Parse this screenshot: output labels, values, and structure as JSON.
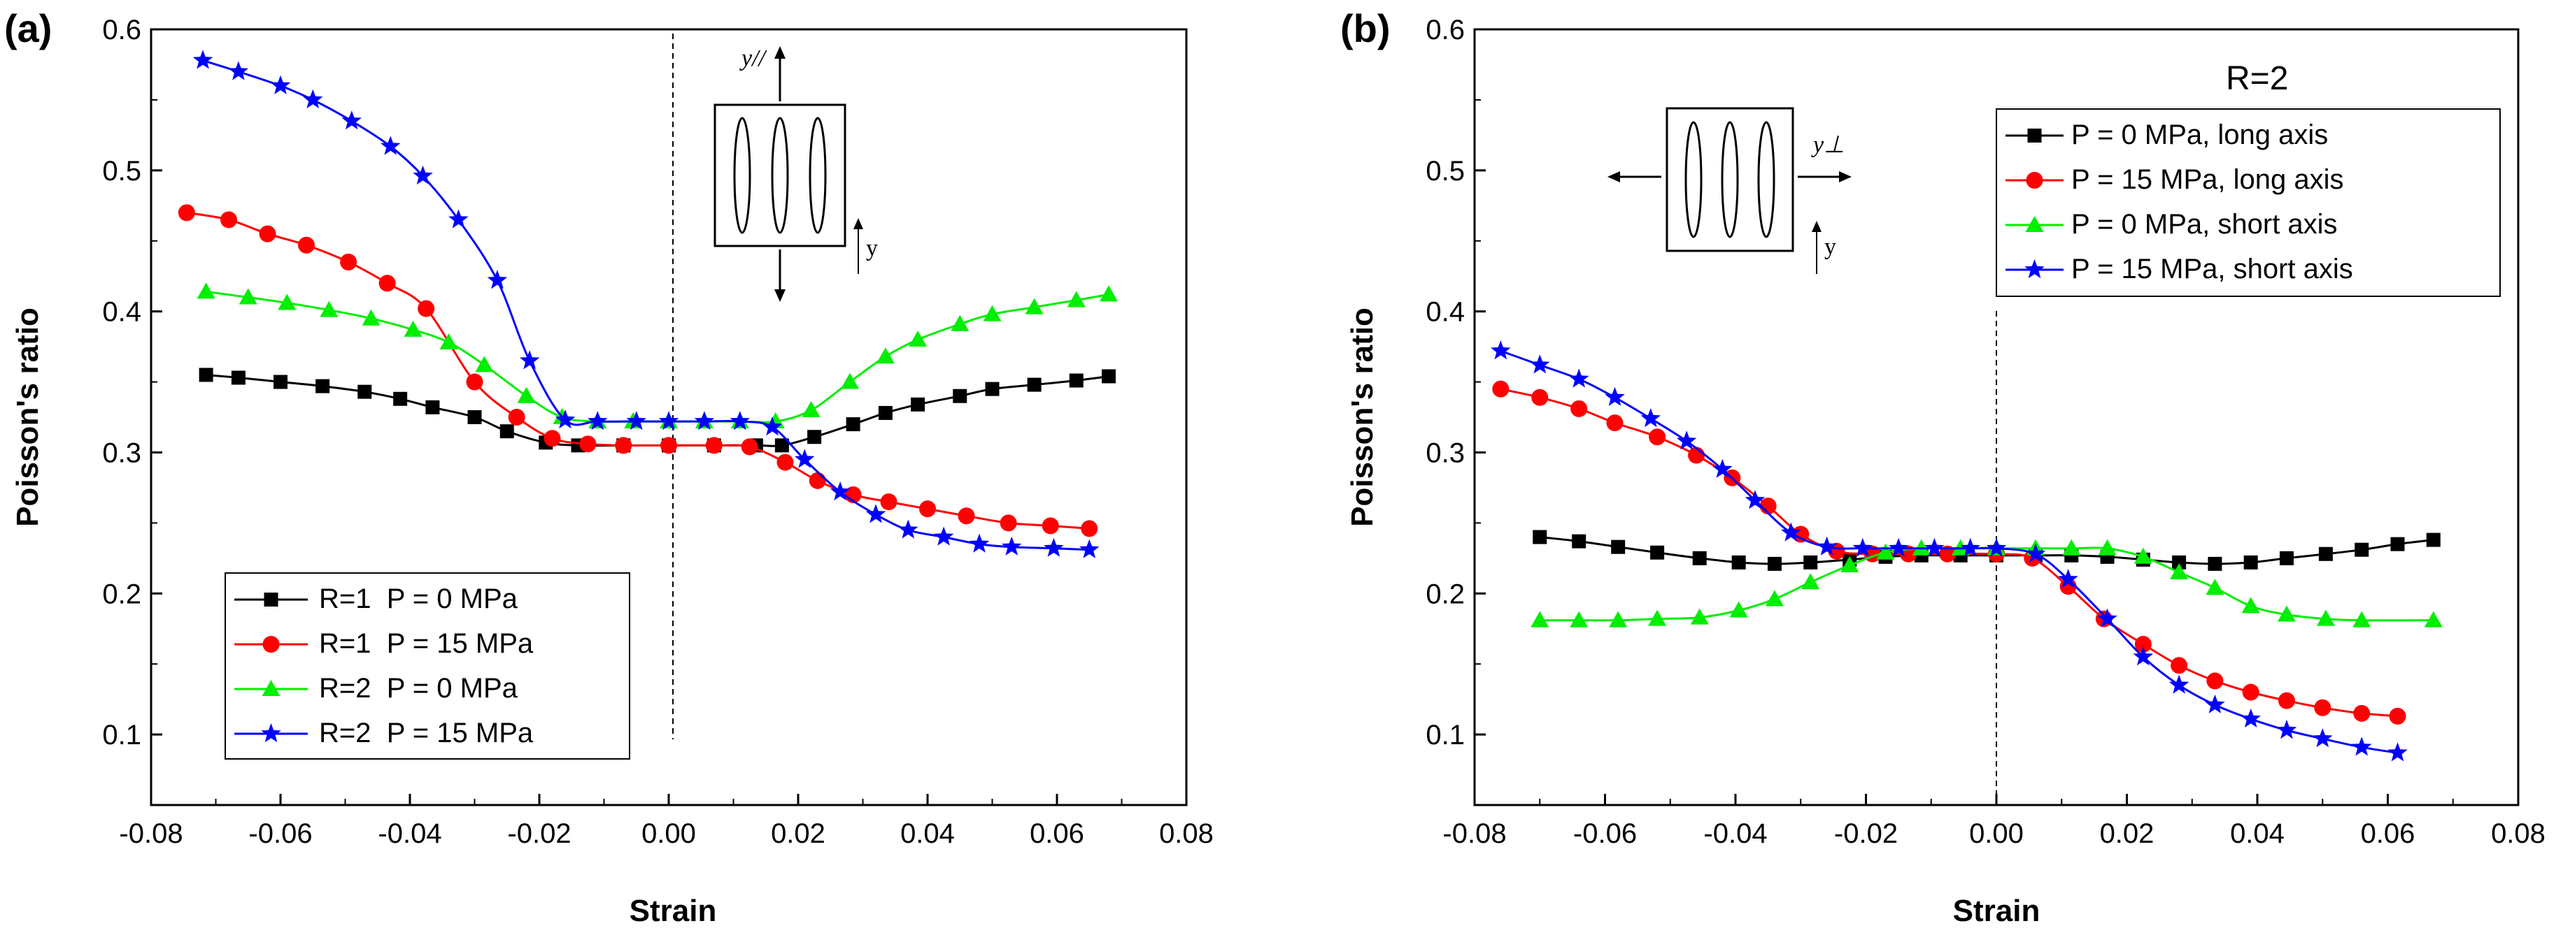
{
  "chart_data": [
    {
      "type": "line",
      "panel_label": "(a)",
      "xlabel": "Strain",
      "ylabel": "Poisson's ratio",
      "xlim": [
        -0.08,
        0.08
      ],
      "ylim": [
        0.05,
        0.6
      ],
      "xticks": [
        "-0.08",
        "-0.06",
        "-0.04",
        "-0.02",
        "0.00",
        "0.02",
        "0.04",
        "0.06",
        "0.08"
      ],
      "yticks": [
        "0.1",
        "0.2",
        "0.3",
        "0.4",
        "0.5",
        "0.6"
      ],
      "inset_labels": {
        "top": "y//",
        "side": "y"
      },
      "legend_position": "bottom-left",
      "series": [
        {
          "name": "R=1  P = 0 MPa",
          "color": "#000000",
          "marker": "square",
          "x": [
            -0.0715,
            -0.0665,
            -0.06,
            -0.0535,
            -0.047,
            -0.0415,
            -0.0365,
            -0.03,
            -0.025,
            -0.019,
            -0.014,
            -0.007,
            0.0,
            0.007,
            0.0135,
            0.0175,
            0.0225,
            0.0285,
            0.0335,
            0.0385,
            0.045,
            0.05,
            0.0565,
            0.063,
            0.068
          ],
          "y": [
            0.355,
            0.353,
            0.35,
            0.347,
            0.343,
            0.338,
            0.332,
            0.325,
            0.315,
            0.307,
            0.305,
            0.305,
            0.305,
            0.305,
            0.305,
            0.305,
            0.311,
            0.32,
            0.328,
            0.334,
            0.34,
            0.345,
            0.348,
            0.351,
            0.354
          ]
        },
        {
          "name": "R=1  P = 15 MPa",
          "color": "#ff0000",
          "marker": "circle",
          "x": [
            -0.0745,
            -0.068,
            -0.062,
            -0.056,
            -0.0495,
            -0.0435,
            -0.0375,
            -0.03,
            -0.0235,
            -0.018,
            -0.0125,
            -0.007,
            0.0,
            0.007,
            0.0125,
            0.018,
            0.023,
            0.0285,
            0.034,
            0.04,
            0.046,
            0.0525,
            0.059,
            0.065
          ],
          "y": [
            0.47,
            0.465,
            0.455,
            0.447,
            0.435,
            0.42,
            0.402,
            0.35,
            0.325,
            0.31,
            0.306,
            0.305,
            0.305,
            0.305,
            0.304,
            0.293,
            0.28,
            0.27,
            0.265,
            0.26,
            0.255,
            0.25,
            0.248,
            0.246
          ]
        },
        {
          "name": "R=2  P = 0 MPa",
          "color": "#00ee00",
          "marker": "triangle",
          "x": [
            -0.0715,
            -0.065,
            -0.059,
            -0.0525,
            -0.046,
            -0.0395,
            -0.034,
            -0.0285,
            -0.022,
            -0.0165,
            -0.011,
            -0.0055,
            0.0,
            0.0055,
            0.011,
            0.0165,
            0.022,
            0.028,
            0.0335,
            0.0385,
            0.045,
            0.05,
            0.0565,
            0.063,
            0.068
          ],
          "y": [
            0.414,
            0.41,
            0.406,
            0.401,
            0.395,
            0.387,
            0.378,
            0.362,
            0.34,
            0.325,
            0.322,
            0.322,
            0.322,
            0.322,
            0.322,
            0.322,
            0.33,
            0.35,
            0.368,
            0.38,
            0.391,
            0.398,
            0.403,
            0.408,
            0.412
          ]
        },
        {
          "name": "R=2  P = 15 MPa",
          "color": "#0000ff",
          "marker": "star",
          "x": [
            -0.072,
            -0.0665,
            -0.06,
            -0.055,
            -0.049,
            -0.043,
            -0.038,
            -0.0325,
            -0.0265,
            -0.0215,
            -0.016,
            -0.011,
            -0.005,
            0.0,
            0.0055,
            0.011,
            0.016,
            0.021,
            0.0265,
            0.032,
            0.037,
            0.0425,
            0.048,
            0.053,
            0.0595,
            0.065
          ],
          "y": [
            0.578,
            0.57,
            0.56,
            0.55,
            0.535,
            0.517,
            0.496,
            0.465,
            0.422,
            0.365,
            0.323,
            0.322,
            0.322,
            0.322,
            0.322,
            0.322,
            0.318,
            0.295,
            0.272,
            0.256,
            0.245,
            0.24,
            0.235,
            0.233,
            0.232,
            0.231
          ]
        }
      ]
    },
    {
      "type": "line",
      "panel_label": "(b)",
      "xlabel": "Strain",
      "ylabel": "Poisson's ratio",
      "xlim": [
        -0.08,
        0.08
      ],
      "ylim": [
        0.05,
        0.6
      ],
      "xticks": [
        "-0.08",
        "-0.06",
        "-0.04",
        "-0.02",
        "0.00",
        "0.02",
        "0.04",
        "0.06",
        "0.08"
      ],
      "yticks": [
        "0.1",
        "0.2",
        "0.3",
        "0.4",
        "0.5",
        "0.6"
      ],
      "inset_labels": {
        "top": "y⊥",
        "side": "y"
      },
      "legend_title": "R=2",
      "legend_position": "top-right",
      "series": [
        {
          "name": "P = 0 MPa, long axis",
          "color": "#000000",
          "marker": "square",
          "x": [
            -0.07,
            -0.064,
            -0.058,
            -0.052,
            -0.0455,
            -0.0395,
            -0.034,
            -0.0285,
            -0.0225,
            -0.017,
            -0.0115,
            -0.0055,
            0.0,
            0.006,
            0.0115,
            0.017,
            0.0225,
            0.028,
            0.0335,
            0.039,
            0.0445,
            0.0505,
            0.056,
            0.0615,
            0.067
          ],
          "y": [
            0.24,
            0.237,
            0.233,
            0.229,
            0.225,
            0.222,
            0.221,
            0.222,
            0.224,
            0.226,
            0.227,
            0.227,
            0.227,
            0.227,
            0.227,
            0.226,
            0.224,
            0.222,
            0.221,
            0.222,
            0.225,
            0.228,
            0.231,
            0.235,
            0.238
          ]
        },
        {
          "name": "P = 15 MPa, long axis",
          "color": "#ff0000",
          "marker": "circle",
          "x": [
            -0.076,
            -0.07,
            -0.064,
            -0.0585,
            -0.052,
            -0.046,
            -0.0405,
            -0.035,
            -0.03,
            -0.0245,
            -0.019,
            -0.0135,
            -0.0075,
            0.0,
            0.0055,
            0.011,
            0.0165,
            0.0225,
            0.028,
            0.0335,
            0.039,
            0.0445,
            0.05,
            0.056,
            0.0615
          ],
          "y": [
            0.345,
            0.339,
            0.331,
            0.321,
            0.311,
            0.298,
            0.282,
            0.262,
            0.242,
            0.23,
            0.228,
            0.228,
            0.228,
            0.228,
            0.225,
            0.205,
            0.182,
            0.164,
            0.149,
            0.138,
            0.13,
            0.124,
            0.119,
            0.115,
            0.113
          ]
        },
        {
          "name": "P = 0 MPa, short axis",
          "color": "#00ee00",
          "marker": "triangle",
          "x": [
            -0.07,
            -0.064,
            -0.058,
            -0.052,
            -0.0455,
            -0.0395,
            -0.034,
            -0.0285,
            -0.0225,
            -0.017,
            -0.0115,
            -0.0055,
            0.0,
            0.006,
            0.0115,
            0.017,
            0.0225,
            0.028,
            0.0335,
            0.039,
            0.0445,
            0.0505,
            0.056,
            0.067
          ],
          "y": [
            0.181,
            0.181,
            0.181,
            0.182,
            0.183,
            0.188,
            0.196,
            0.208,
            0.22,
            0.229,
            0.232,
            0.232,
            0.232,
            0.232,
            0.232,
            0.232,
            0.226,
            0.215,
            0.204,
            0.191,
            0.185,
            0.182,
            0.181,
            0.181
          ]
        },
        {
          "name": "P = 15 MPa, short axis",
          "color": "#0000ff",
          "marker": "star",
          "x": [
            -0.076,
            -0.07,
            -0.064,
            -0.0585,
            -0.053,
            -0.0475,
            -0.042,
            -0.037,
            -0.0315,
            -0.026,
            -0.0205,
            -0.015,
            -0.0095,
            -0.004,
            0.0,
            0.006,
            0.011,
            0.017,
            0.0225,
            0.028,
            0.0335,
            0.039,
            0.0445,
            0.05,
            0.056,
            0.0615
          ],
          "y": [
            0.372,
            0.362,
            0.352,
            0.339,
            0.324,
            0.308,
            0.288,
            0.266,
            0.243,
            0.233,
            0.232,
            0.232,
            0.232,
            0.232,
            0.232,
            0.228,
            0.21,
            0.182,
            0.155,
            0.135,
            0.121,
            0.111,
            0.103,
            0.097,
            0.091,
            0.087
          ]
        }
      ]
    }
  ]
}
